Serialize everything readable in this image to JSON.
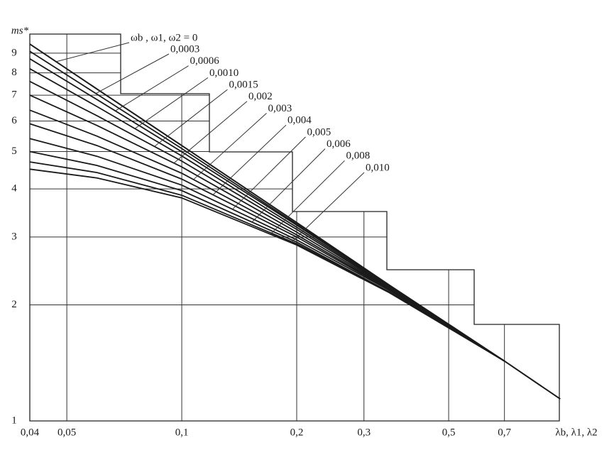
{
  "chart_data": {
    "type": "line",
    "x_label": "λb, λ1, λ2",
    "y_label": "ms*",
    "log_x": true,
    "log_y": true,
    "grid": true,
    "xlim": [
      0.04,
      1
    ],
    "ylim": [
      1,
      10
    ],
    "xticks": [
      {
        "value": 0.04,
        "label": "0,04"
      },
      {
        "value": 0.05,
        "label": "0,05"
      },
      {
        "value": 0.1,
        "label": "0,1"
      },
      {
        "value": 0.2,
        "label": "0,2"
      },
      {
        "value": 0.3,
        "label": "0,3"
      },
      {
        "value": 0.5,
        "label": "0,5"
      },
      {
        "value": 0.7,
        "label": "0,7"
      }
    ],
    "yticks": [
      1,
      2,
      3,
      4,
      5,
      6,
      7,
      8,
      9
    ],
    "x": [
      0.04,
      0.06,
      0.1,
      0.2,
      0.35,
      0.7,
      0.98
    ],
    "series": [
      {
        "name": "ωb , ω1, ω2 = 0",
        "color": "#1a1a1a",
        "values": [
          9.5,
          7.26,
          5.18,
          3.27,
          2.25,
          1.43,
          1.14
        ]
      },
      {
        "name": "0,0003",
        "color": "#1a1a1a",
        "values": [
          9.1,
          7.04,
          5.09,
          3.24,
          2.24,
          1.43,
          null
        ]
      },
      {
        "name": "0,0006",
        "color": "#1a1a1a",
        "values": [
          8.7,
          6.82,
          4.99,
          3.22,
          2.24,
          1.43,
          null
        ]
      },
      {
        "name": "0,0010",
        "color": "#1a1a1a",
        "values": [
          8.2,
          6.54,
          4.87,
          3.18,
          2.23,
          1.43,
          null
        ]
      },
      {
        "name": "0,0015",
        "color": "#1a1a1a",
        "values": [
          7.6,
          6.19,
          4.72,
          3.14,
          2.22,
          1.43,
          null
        ]
      },
      {
        "name": "0,002",
        "color": "#1a1a1a",
        "values": [
          7.0,
          5.84,
          4.56,
          3.09,
          2.21,
          1.43,
          null
        ]
      },
      {
        "name": "0,003",
        "color": "#1a1a1a",
        "values": [
          6.4,
          5.48,
          4.39,
          3.04,
          2.2,
          1.43,
          null
        ]
      },
      {
        "name": "0,004",
        "color": "#1a1a1a",
        "values": [
          5.9,
          5.18,
          4.24,
          3.0,
          2.19,
          1.43,
          null
        ]
      },
      {
        "name": "0,005",
        "color": "#1a1a1a",
        "values": [
          5.4,
          4.86,
          4.09,
          2.95,
          2.18,
          1.43,
          null
        ]
      },
      {
        "name": "0,006",
        "color": "#1a1a1a",
        "values": [
          5.0,
          4.6,
          3.96,
          2.91,
          2.16,
          1.43,
          null
        ]
      },
      {
        "name": "0,008",
        "color": "#1a1a1a",
        "values": [
          4.7,
          4.41,
          3.85,
          2.88,
          2.16,
          1.43,
          null
        ]
      },
      {
        "name": "0,010",
        "color": "#1a1a1a",
        "values": [
          4.5,
          4.27,
          3.79,
          2.86,
          2.15,
          1.43,
          null
        ]
      }
    ]
  }
}
